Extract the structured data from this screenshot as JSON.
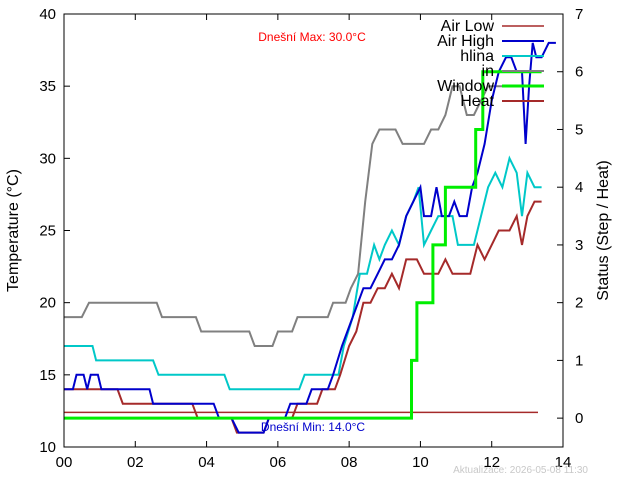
{
  "chart_data": {
    "type": "line",
    "title": "",
    "xlabel": "",
    "ylabel": "Temperature (°C)",
    "y2label": "Status (Step / Heat)",
    "xlim": [
      0,
      14
    ],
    "ylim": [
      10,
      40
    ],
    "y2lim": [
      -0.5,
      7
    ],
    "x_ticks": [
      0,
      2,
      4,
      6,
      8,
      10,
      12,
      14
    ],
    "x_tick_labels": [
      "00",
      "02",
      "04",
      "06",
      "08",
      "10",
      "12",
      "14"
    ],
    "y_ticks": [
      10,
      15,
      20,
      25,
      30,
      35,
      40
    ],
    "y2_ticks": [
      0,
      1,
      2,
      3,
      4,
      5,
      6,
      7
    ],
    "grid": false,
    "legend_position": "top-right",
    "annotations": {
      "max_text": "Dnešní Max: 30.0°C",
      "min_text": "Dnešní Min: 14.0°C",
      "max_color": "#ff0000",
      "min_color": "#0000cc",
      "footer": "Aktualizace: 2026-05-08 11:30"
    },
    "series": [
      {
        "name": "Air Low",
        "axis": "y",
        "color": "#a52a2a",
        "width": 1.5,
        "points": [
          [
            0,
            12.4
          ],
          [
            13.3,
            12.4
          ]
        ]
      },
      {
        "name": "Air High",
        "axis": "y",
        "color": "#0000cc",
        "width": 2,
        "points": [
          [
            0,
            14
          ],
          [
            0.25,
            14
          ],
          [
            0.35,
            15
          ],
          [
            0.55,
            15
          ],
          [
            0.65,
            14
          ],
          [
            0.75,
            15
          ],
          [
            0.95,
            15
          ],
          [
            1.05,
            14
          ],
          [
            2.4,
            14
          ],
          [
            2.5,
            13
          ],
          [
            4.2,
            13
          ],
          [
            4.35,
            12
          ],
          [
            4.7,
            12
          ],
          [
            4.9,
            11
          ],
          [
            5.6,
            11
          ],
          [
            5.75,
            12
          ],
          [
            6.2,
            12
          ],
          [
            6.35,
            13
          ],
          [
            6.8,
            13
          ],
          [
            6.95,
            14
          ],
          [
            7.4,
            14
          ],
          [
            7.55,
            15
          ],
          [
            7.8,
            17
          ],
          [
            8.1,
            19
          ],
          [
            8.4,
            21
          ],
          [
            8.6,
            21
          ],
          [
            8.8,
            22
          ],
          [
            9.0,
            23
          ],
          [
            9.2,
            23
          ],
          [
            9.4,
            24
          ],
          [
            9.6,
            26
          ],
          [
            9.8,
            27
          ],
          [
            10.0,
            28
          ],
          [
            10.1,
            26
          ],
          [
            10.3,
            26
          ],
          [
            10.45,
            28
          ],
          [
            10.6,
            26
          ],
          [
            10.8,
            26
          ],
          [
            10.95,
            27
          ],
          [
            11.1,
            26
          ],
          [
            11.3,
            26
          ],
          [
            11.45,
            28
          ],
          [
            11.6,
            29
          ],
          [
            11.8,
            31
          ],
          [
            12.0,
            34
          ],
          [
            12.2,
            36
          ],
          [
            12.4,
            37
          ],
          [
            12.55,
            37
          ],
          [
            12.7,
            36
          ],
          [
            12.85,
            36
          ],
          [
            12.95,
            31
          ],
          [
            13.05,
            35
          ],
          [
            13.15,
            38
          ],
          [
            13.25,
            37
          ],
          [
            13.4,
            37
          ],
          [
            13.6,
            38
          ],
          [
            13.8,
            38
          ]
        ]
      },
      {
        "name": "hlina",
        "axis": "y",
        "color": "#00c8c8",
        "width": 2,
        "points": [
          [
            0,
            17
          ],
          [
            0.8,
            17
          ],
          [
            0.9,
            16
          ],
          [
            2.5,
            16
          ],
          [
            2.65,
            15
          ],
          [
            4.5,
            15
          ],
          [
            4.65,
            14
          ],
          [
            6.6,
            14
          ],
          [
            6.75,
            15
          ],
          [
            7.7,
            15
          ],
          [
            7.85,
            17
          ],
          [
            8.1,
            19
          ],
          [
            8.3,
            22
          ],
          [
            8.5,
            22
          ],
          [
            8.7,
            24
          ],
          [
            8.85,
            23
          ],
          [
            9.0,
            24
          ],
          [
            9.2,
            25
          ],
          [
            9.4,
            24
          ],
          [
            9.6,
            26
          ],
          [
            9.8,
            27
          ],
          [
            9.95,
            28
          ],
          [
            10.1,
            24
          ],
          [
            10.3,
            25
          ],
          [
            10.5,
            26
          ],
          [
            10.7,
            26
          ],
          [
            10.9,
            26
          ],
          [
            11.05,
            24
          ],
          [
            11.5,
            24
          ],
          [
            11.7,
            26
          ],
          [
            11.9,
            28
          ],
          [
            12.1,
            29
          ],
          [
            12.3,
            28
          ],
          [
            12.5,
            30
          ],
          [
            12.7,
            29
          ],
          [
            12.85,
            26
          ],
          [
            13.0,
            29
          ],
          [
            13.2,
            28
          ],
          [
            13.4,
            28
          ]
        ]
      },
      {
        "name": "in",
        "axis": "y",
        "color": "#808080",
        "width": 2,
        "points": [
          [
            0,
            19
          ],
          [
            0.5,
            19
          ],
          [
            0.7,
            20
          ],
          [
            2.6,
            20
          ],
          [
            2.75,
            19
          ],
          [
            3.7,
            19
          ],
          [
            3.85,
            18
          ],
          [
            5.2,
            18
          ],
          [
            5.35,
            17
          ],
          [
            5.85,
            17
          ],
          [
            6.0,
            18
          ],
          [
            6.4,
            18
          ],
          [
            6.55,
            19
          ],
          [
            7.4,
            19
          ],
          [
            7.55,
            20
          ],
          [
            7.9,
            20
          ],
          [
            8.05,
            21
          ],
          [
            8.25,
            22
          ],
          [
            8.45,
            27
          ],
          [
            8.65,
            31
          ],
          [
            8.85,
            32
          ],
          [
            9.1,
            32
          ],
          [
            9.3,
            32
          ],
          [
            9.5,
            31
          ],
          [
            9.7,
            31
          ],
          [
            10.1,
            31
          ],
          [
            10.3,
            32
          ],
          [
            10.5,
            32
          ],
          [
            10.7,
            33
          ],
          [
            10.9,
            35
          ],
          [
            11.1,
            35
          ],
          [
            11.3,
            33
          ],
          [
            11.5,
            33
          ],
          [
            11.7,
            34
          ],
          [
            11.9,
            35
          ],
          [
            12.1,
            35
          ],
          [
            12.3,
            35
          ],
          [
            12.5,
            35
          ],
          [
            12.7,
            35
          ],
          [
            12.9,
            35
          ],
          [
            13.1,
            35
          ],
          [
            13.3,
            35
          ]
        ]
      },
      {
        "name": "Window",
        "axis": "y2",
        "color": "#00ee00",
        "width": 3,
        "points": [
          [
            0,
            0
          ],
          [
            9.75,
            0
          ],
          [
            9.75,
            1
          ],
          [
            9.9,
            1
          ],
          [
            9.9,
            2
          ],
          [
            10.35,
            2
          ],
          [
            10.35,
            3
          ],
          [
            10.7,
            3
          ],
          [
            10.7,
            4
          ],
          [
            11.55,
            4
          ],
          [
            11.55,
            5
          ],
          [
            11.75,
            5
          ],
          [
            11.75,
            6
          ],
          [
            13.4,
            6
          ]
        ]
      },
      {
        "name": "Heat",
        "axis": "y",
        "color": "#a52a2a",
        "width": 2,
        "points": [
          [
            0,
            14
          ],
          [
            1.5,
            14
          ],
          [
            1.65,
            13
          ],
          [
            3.6,
            13
          ],
          [
            3.75,
            12
          ],
          [
            4.7,
            12
          ],
          [
            4.85,
            11
          ],
          [
            5.6,
            11
          ],
          [
            5.75,
            12
          ],
          [
            6.4,
            12
          ],
          [
            6.55,
            13
          ],
          [
            7.1,
            13
          ],
          [
            7.25,
            14
          ],
          [
            7.6,
            14
          ],
          [
            7.75,
            15
          ],
          [
            8.0,
            17
          ],
          [
            8.2,
            18
          ],
          [
            8.4,
            20
          ],
          [
            8.6,
            20
          ],
          [
            8.8,
            21
          ],
          [
            9.0,
            21
          ],
          [
            9.2,
            22
          ],
          [
            9.4,
            21
          ],
          [
            9.6,
            23
          ],
          [
            9.9,
            23
          ],
          [
            10.1,
            22
          ],
          [
            10.5,
            22
          ],
          [
            10.7,
            23
          ],
          [
            10.9,
            22
          ],
          [
            11.4,
            22
          ],
          [
            11.6,
            24
          ],
          [
            11.8,
            23
          ],
          [
            12.0,
            24
          ],
          [
            12.2,
            25
          ],
          [
            12.5,
            25
          ],
          [
            12.7,
            26
          ],
          [
            12.85,
            24
          ],
          [
            13.0,
            26
          ],
          [
            13.2,
            27
          ],
          [
            13.4,
            27
          ]
        ]
      }
    ]
  }
}
